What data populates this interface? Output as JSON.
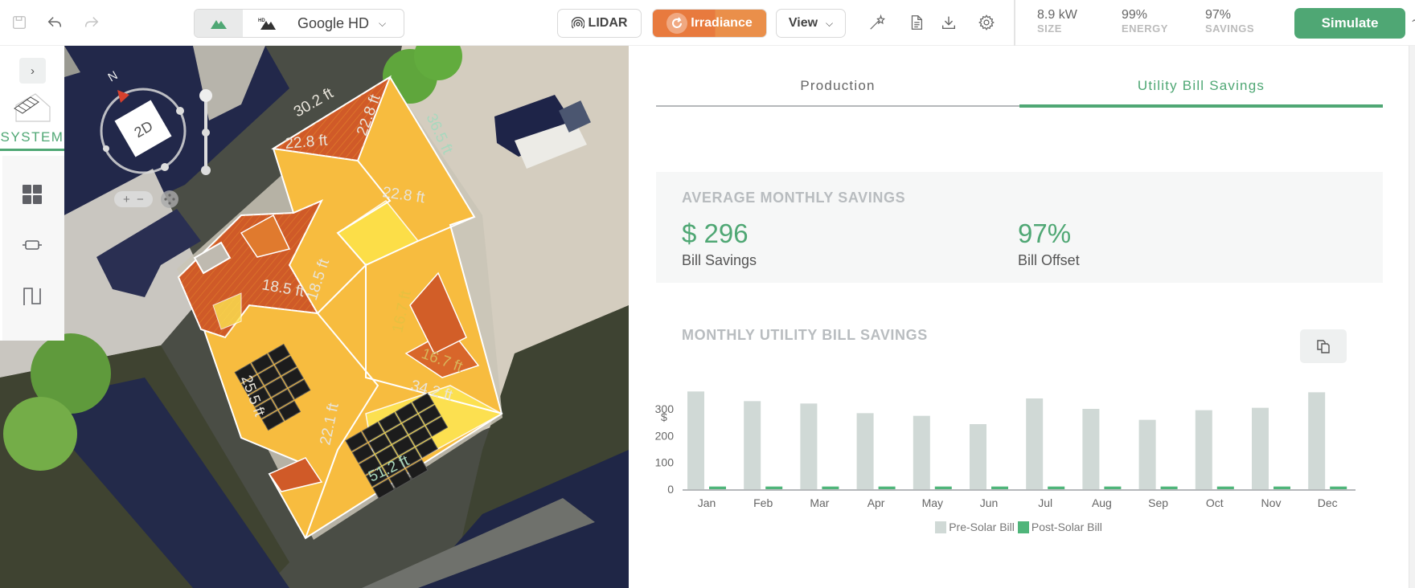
{
  "header": {
    "save_icon": "save-icon",
    "undo_icon": "undo-icon",
    "redo_icon": "redo-icon",
    "imagery": {
      "options_icons": [
        "terrain-icon",
        "hd-terrain-icon"
      ],
      "selected": "Google HD"
    },
    "lidar_label": "LIDAR",
    "irradiance_label": "Irradiance",
    "view_label": "View",
    "tool_icons": [
      "magic-wand-icon",
      "document-icon",
      "download-icon",
      "gear-icon"
    ],
    "stats": [
      {
        "value": "8.9 kW",
        "label": "SIZE"
      },
      {
        "value": "99%",
        "label": "ENERGY"
      },
      {
        "value": "97%",
        "label": "SAVINGS"
      }
    ],
    "simulate_label": "Simulate"
  },
  "sidebar": {
    "expand_glyph": "›",
    "system_label": "SYSTEM",
    "icons": [
      "panels-grid-icon",
      "inverter-icon",
      "wiring-icon"
    ]
  },
  "map": {
    "compass_label": "N",
    "mode_label": "2D",
    "zoom_in": "+",
    "zoom_out": "−",
    "measurements": [
      "30.2 ft",
      "22.8 ft",
      "22.8 ft",
      "36.5 ft",
      "22.8 ft",
      "18.5 ft",
      "18.5 ft",
      "16.7 ft",
      "16.7 ft",
      "25.5 ft",
      "22.1 ft",
      "34.2 ft",
      "51.2 ft"
    ]
  },
  "panel": {
    "tabs": [
      {
        "label": "Production",
        "active": false
      },
      {
        "label": "Utility Bill Savings",
        "active": true
      }
    ],
    "summary": {
      "title": "AVERAGE MONTHLY SAVINGS",
      "bill_savings_value": "$ 296",
      "bill_savings_label": "Bill Savings",
      "bill_offset_value": "97%",
      "bill_offset_label": "Bill Offset"
    },
    "chart_title": "MONTHLY UTILITY BILL SAVINGS",
    "copy_icon": "copy-icon"
  },
  "colors": {
    "accent_green": "#4fa774",
    "irradiance_orange": "#e87a3e",
    "pre_solar_bar": "#d0d9d6",
    "post_solar_bar": "#4fb57a"
  },
  "chart_data": {
    "type": "bar",
    "title": "MONTHLY UTILITY BILL SAVINGS",
    "xlabel": "",
    "ylabel": "$",
    "categories": [
      "Jan",
      "Feb",
      "Mar",
      "Apr",
      "May",
      "Jun",
      "Jul",
      "Aug",
      "Sep",
      "Oct",
      "Nov",
      "Dec"
    ],
    "series": [
      {
        "name": "Pre-Solar Bill",
        "color": "#d0d9d6",
        "values": [
          365,
          329,
          320,
          284,
          274,
          243,
          339,
          300,
          259,
          295,
          304,
          362
        ]
      },
      {
        "name": "Post-Solar Bill",
        "color": "#4fb57a",
        "values": [
          10,
          10,
          10,
          10,
          10,
          10,
          10,
          10,
          10,
          10,
          10,
          10
        ]
      }
    ],
    "yticks": [
      0,
      100,
      200,
      300
    ],
    "ylim": [
      0,
      400
    ],
    "grid": false,
    "legend_position": "bottom"
  }
}
